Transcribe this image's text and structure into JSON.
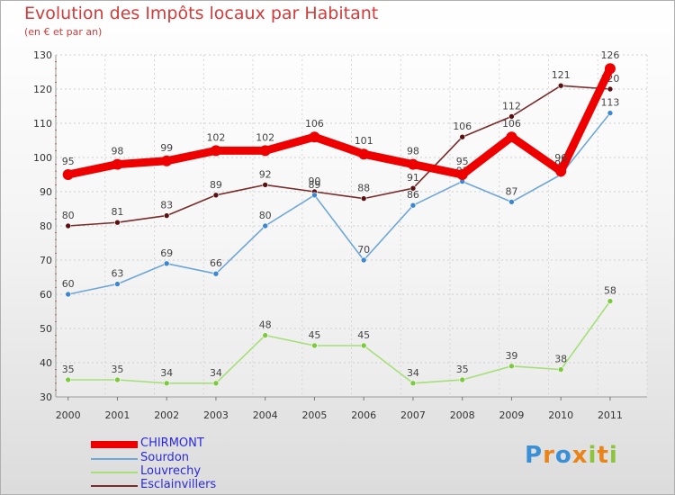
{
  "header": {
    "title": "Evolution des Impôts locaux par Habitant",
    "subtitle": "(en € et par an)"
  },
  "brand": {
    "parts": [
      {
        "text": "P",
        "color": "#3b8fd6"
      },
      {
        "text": "r",
        "color": "#e8841a"
      },
      {
        "text": "o",
        "color": "#3b8fd6"
      },
      {
        "text": "x",
        "color": "#e8841a"
      },
      {
        "text": "i",
        "color": "#8cc43c"
      },
      {
        "text": "t",
        "color": "#e8841a"
      },
      {
        "text": "i",
        "color": "#8cc43c"
      }
    ]
  },
  "chart_data": {
    "type": "line",
    "title": "Evolution des Impôts locaux par Habitant",
    "subtitle": "(en € et par an)",
    "xlabel": "",
    "ylabel": "",
    "categories": [
      "2000",
      "2001",
      "2002",
      "2003",
      "2004",
      "2005",
      "2006",
      "2007",
      "2008",
      "2009",
      "2010",
      "2011"
    ],
    "ylim": [
      30,
      130
    ],
    "yticks": [
      30,
      40,
      50,
      60,
      70,
      80,
      90,
      100,
      110,
      120,
      130
    ],
    "grid": true,
    "legend_position": "bottom-left",
    "series": [
      {
        "name": "Esclainvillers",
        "color": "#7a2b2b",
        "pointColor": "#5a1010",
        "values": [
          80,
          81,
          83,
          89,
          92,
          90,
          88,
          91,
          106,
          112,
          121,
          120
        ]
      },
      {
        "name": "Sourdon",
        "color": "#6fa6d8",
        "pointColor": "#3c87cf",
        "values": [
          60,
          63,
          69,
          66,
          80,
          89,
          70,
          86,
          93,
          87,
          95,
          113
        ]
      },
      {
        "name": "Louvrechy",
        "color": "#a6df7a",
        "pointColor": "#7cc83f",
        "values": [
          35,
          35,
          34,
          34,
          48,
          45,
          45,
          34,
          35,
          39,
          38,
          58
        ]
      },
      {
        "name": "CHIRMONT",
        "color": "#ee0000",
        "pointColor": "#ee0000",
        "values": [
          95,
          98,
          99,
          102,
          102,
          106,
          101,
          98,
          95,
          106,
          96,
          126
        ]
      }
    ],
    "legend_order": [
      "CHIRMONT",
      "Sourdon",
      "Louvrechy",
      "Esclainvillers"
    ]
  }
}
